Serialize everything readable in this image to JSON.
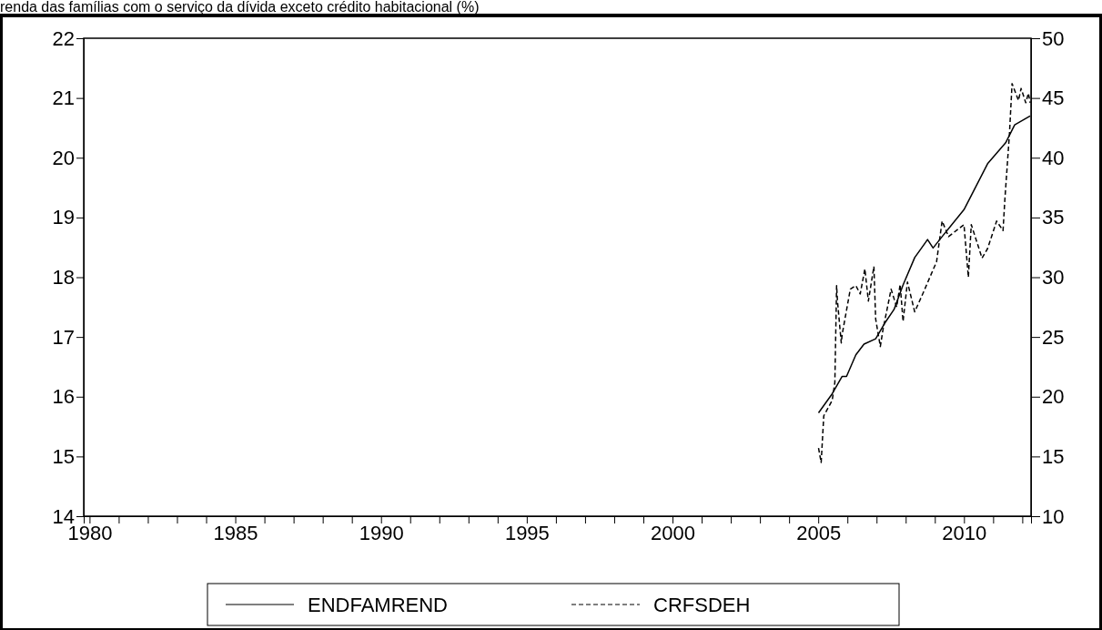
{
  "chart_data": {
    "type": "line",
    "title": "renda das famílias com o serviço da dívida exceto crédito habitacional (%)",
    "xlim": [
      1979.8,
      2012.3
    ],
    "xticks": [
      1980,
      {
        "value": 1981,
        "label": null
      },
      {
        "value": 1982,
        "label": null
      },
      {
        "value": 1983,
        "label": null
      },
      {
        "value": 1984,
        "label": null
      },
      1985,
      {
        "value": 1986,
        "label": null
      },
      {
        "value": 1987,
        "label": null
      },
      {
        "value": 1988,
        "label": null
      },
      {
        "value": 1989,
        "label": null
      },
      1990,
      {
        "value": 1991,
        "label": null
      },
      {
        "value": 1992,
        "label": null
      },
      {
        "value": 1993,
        "label": null
      },
      {
        "value": 1994,
        "label": null
      },
      1995,
      {
        "value": 1996,
        "label": null
      },
      {
        "value": 1997,
        "label": null
      },
      {
        "value": 1998,
        "label": null
      },
      {
        "value": 1999,
        "label": null
      },
      2000,
      {
        "value": 2001,
        "label": null
      },
      {
        "value": 2002,
        "label": null
      },
      {
        "value": 2003,
        "label": null
      },
      {
        "value": 2004,
        "label": null
      },
      2005,
      {
        "value": 2006,
        "label": null
      },
      {
        "value": 2007,
        "label": null
      },
      {
        "value": 2008,
        "label": null
      },
      {
        "value": 2009,
        "label": null
      },
      2010,
      {
        "value": 2011,
        "label": null
      },
      {
        "value": 2012,
        "label": null
      }
    ],
    "ylim": [
      14,
      22
    ],
    "yticks": [
      14,
      15,
      16,
      17,
      18,
      19,
      20,
      21,
      22
    ],
    "y2lim": [
      10,
      50
    ],
    "y2ticks": [
      10,
      15,
      20,
      25,
      30,
      35,
      40,
      45,
      50
    ],
    "legend": "bottom",
    "grid": false,
    "marker": "none",
    "series": [
      {
        "name": "ENDFAMREND",
        "color": "#000000",
        "line_style": "solid",
        "x": [
          2005.01,
          2005.48,
          2005.82,
          2005.97,
          2006.29,
          2006.57,
          2006.97,
          2007.28,
          2007.6,
          2007.91,
          2008.31,
          2008.75,
          2008.94,
          2009.25,
          2010.0,
          2010.81,
          2011.43,
          2011.74,
          2012.27
        ],
        "values": [
          15.73,
          16.05,
          16.34,
          16.34,
          16.7,
          16.88,
          16.97,
          17.23,
          17.46,
          17.87,
          18.33,
          18.63,
          18.49,
          18.68,
          19.13,
          19.9,
          20.25,
          20.55,
          20.7
        ]
      },
      {
        "name": "CRFSDEH",
        "color": "#000000",
        "line_style": "dashed",
        "axis": "y2",
        "x": [
          2005.01,
          2005.1,
          2005.19,
          2005.48,
          2005.57,
          2005.63,
          2005.66,
          2005.79,
          2005.82,
          2006.1,
          2006.29,
          2006.44,
          2006.6,
          2006.72,
          2006.91,
          2006.97,
          2007.13,
          2007.22,
          2007.5,
          2007.69,
          2007.81,
          2007.91,
          2008.06,
          2008.31,
          2008.62,
          2009.06,
          2009.25,
          2009.47,
          2010.0,
          2010.15,
          2010.25,
          2010.62,
          2010.81,
          2011.12,
          2011.34,
          2011.4,
          2011.56,
          2011.65,
          2011.87,
          2011.96,
          2012.12,
          2012.21,
          2012.27
        ],
        "values": [
          15.7,
          14.5,
          18.4,
          19.7,
          21.2,
          29.3,
          28.0,
          24.5,
          25.2,
          29.0,
          29.3,
          28.6,
          30.7,
          28.0,
          30.9,
          26.5,
          24.2,
          25.6,
          29.0,
          27.5,
          29.4,
          26.3,
          29.6,
          27.1,
          28.8,
          31.3,
          34.7,
          33.4,
          34.4,
          30.0,
          34.4,
          31.6,
          32.4,
          34.7,
          33.9,
          36.4,
          42.0,
          46.2,
          44.8,
          45.8,
          44.6,
          45.4,
          44.6
        ]
      }
    ]
  }
}
